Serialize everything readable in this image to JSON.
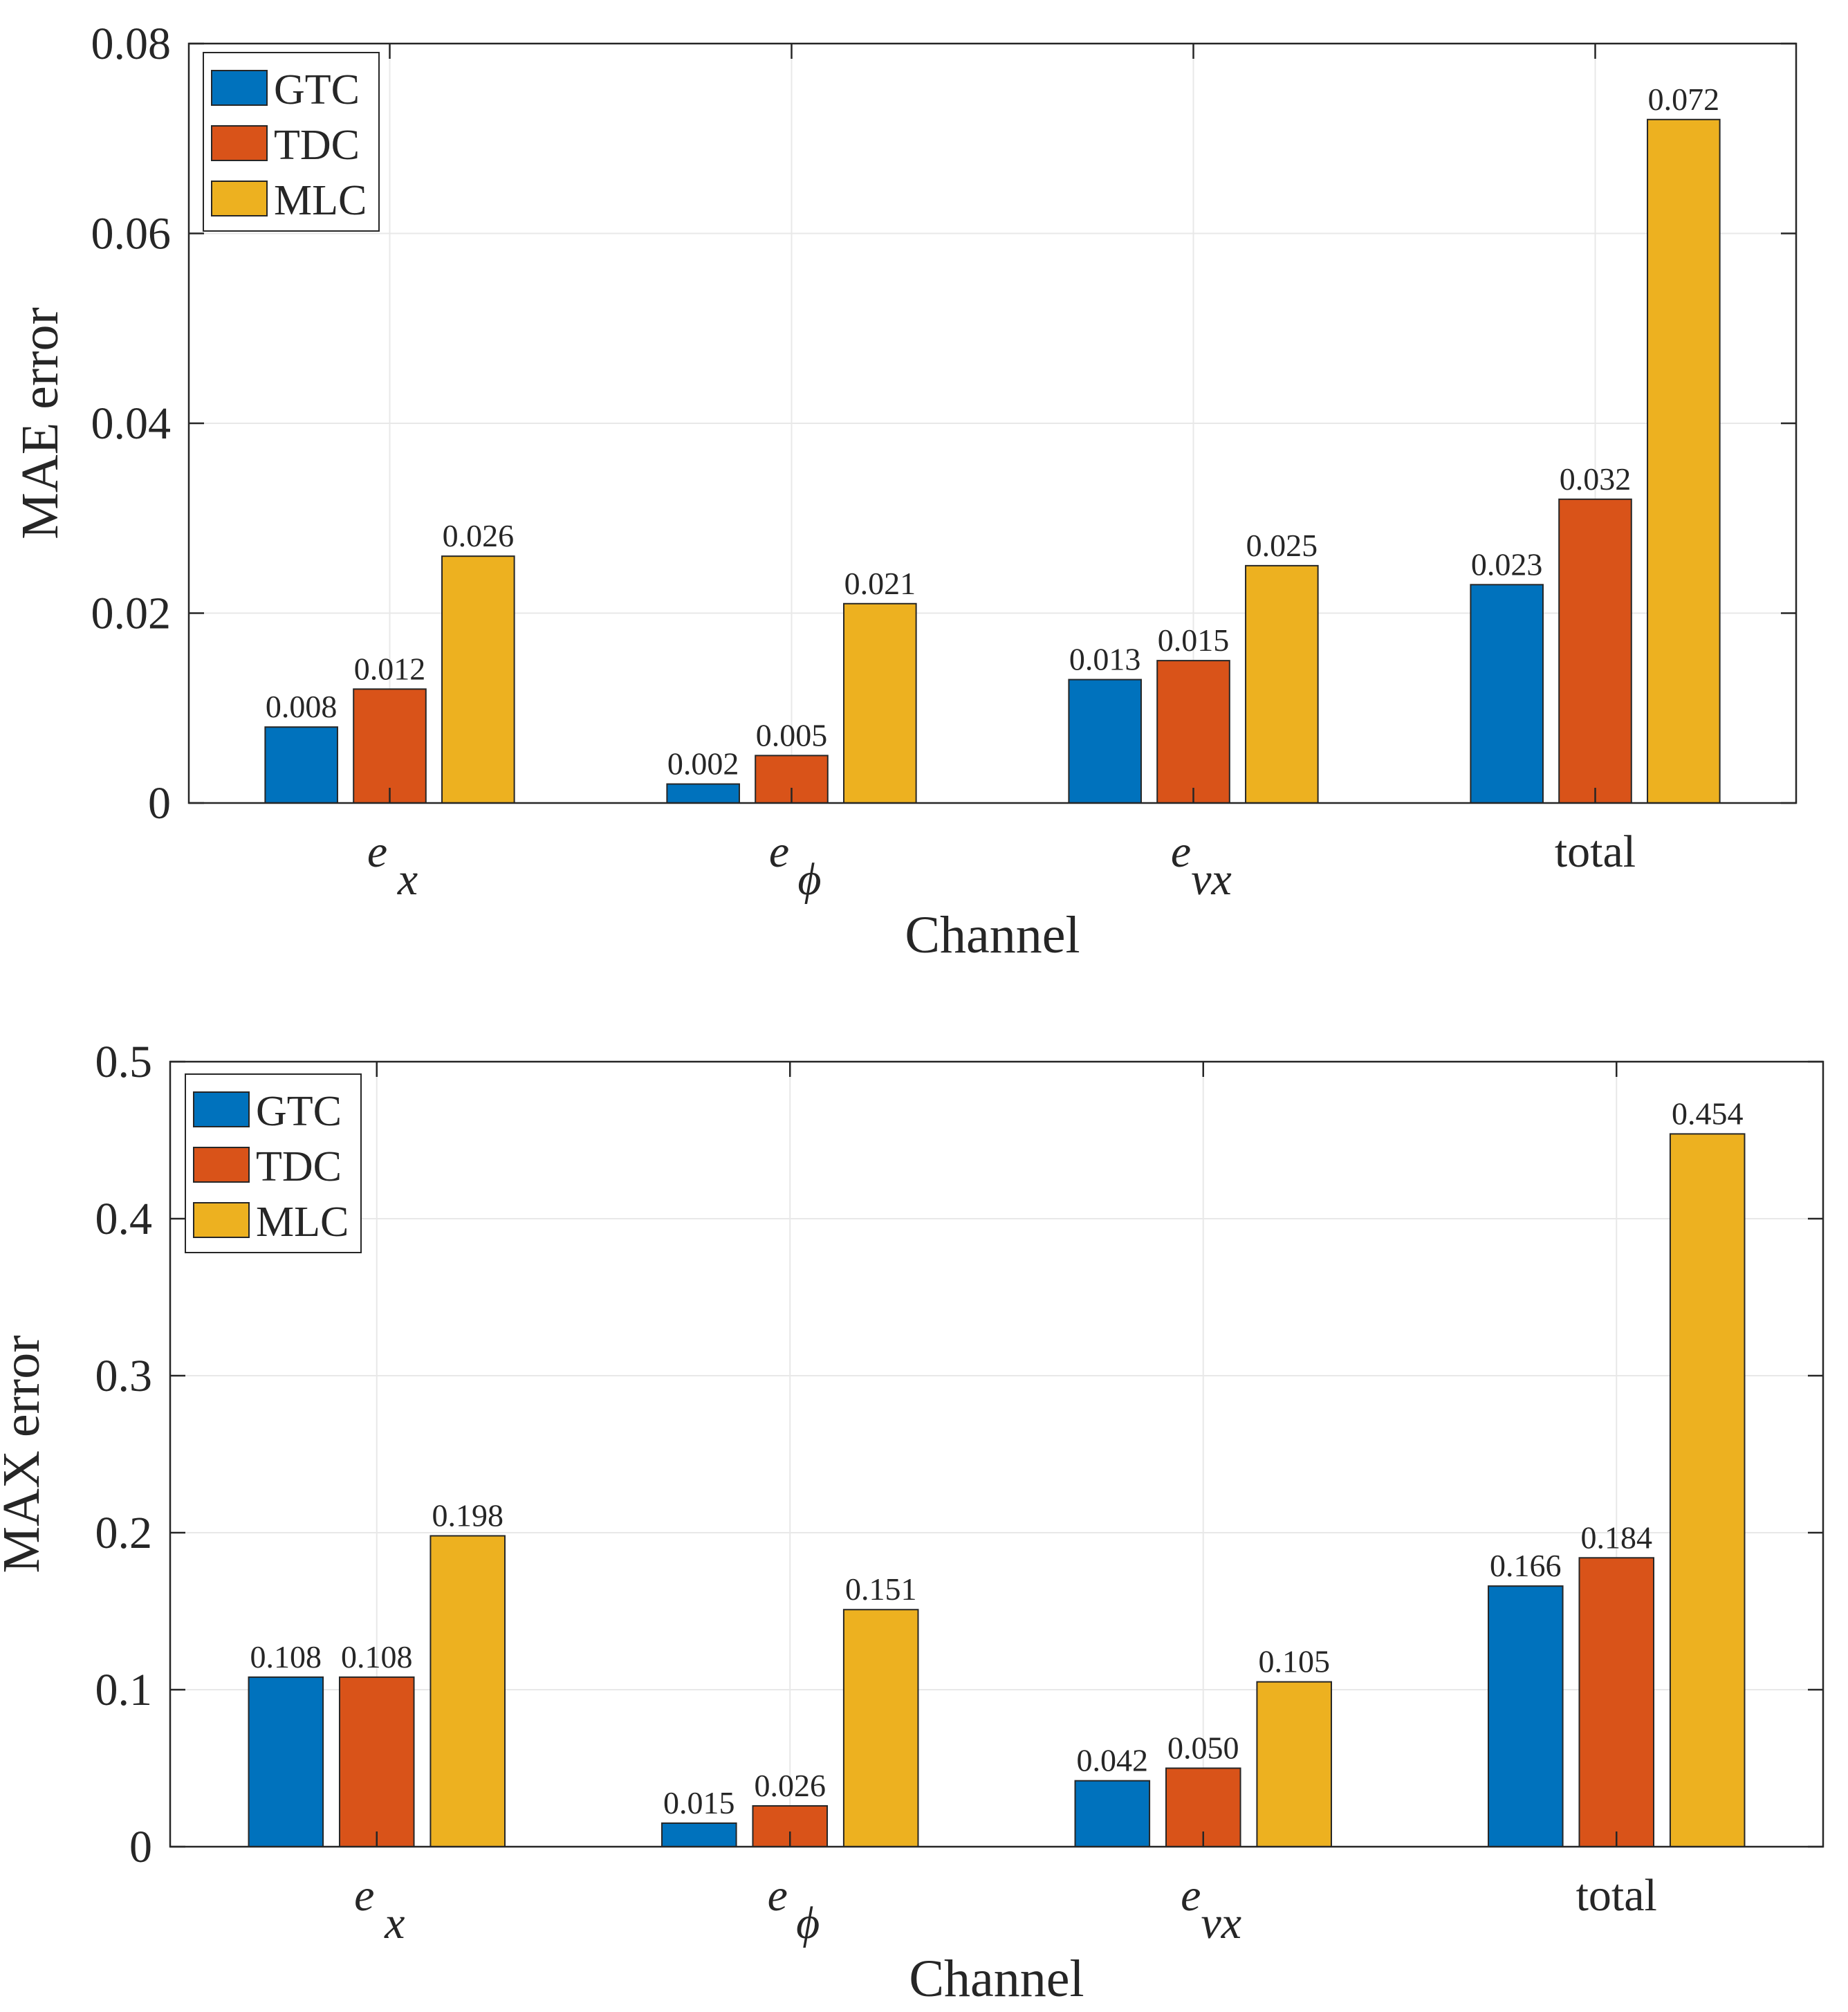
{
  "chart_data": [
    {
      "type": "bar",
      "categories": [
        {
          "base": "e",
          "sub": "x"
        },
        {
          "base": "e",
          "sub": "ϕ"
        },
        {
          "base": "e",
          "sub": "vx"
        },
        {
          "base": "total",
          "sub": ""
        }
      ],
      "series": [
        {
          "name": "GTC",
          "color": "#0072bd",
          "values": [
            0.008,
            0.002,
            0.013,
            0.023
          ],
          "labels": [
            "0.008",
            "0.002",
            "0.013",
            "0.023"
          ]
        },
        {
          "name": "TDC",
          "color": "#d95319",
          "values": [
            0.012,
            0.005,
            0.015,
            0.032
          ],
          "labels": [
            "0.012",
            "0.005",
            "0.015",
            "0.032"
          ]
        },
        {
          "name": "MLC",
          "color": "#edb120",
          "values": [
            0.026,
            0.021,
            0.025,
            0.072
          ],
          "labels": [
            "0.026",
            "0.021",
            "0.025",
            "0.072"
          ]
        }
      ],
      "xlabel": "Channel",
      "ylabel": "MAE error",
      "ylim": [
        0,
        0.08
      ],
      "yticks": [
        0,
        0.02,
        0.04,
        0.06,
        0.08
      ],
      "ytick_labels": [
        "0",
        "0.02",
        "0.04",
        "0.06",
        "0.08"
      ],
      "grid": true,
      "legend_position": "top-left"
    },
    {
      "type": "bar",
      "categories": [
        {
          "base": "e",
          "sub": "x"
        },
        {
          "base": "e",
          "sub": "ϕ"
        },
        {
          "base": "e",
          "sub": "vx"
        },
        {
          "base": "total",
          "sub": ""
        }
      ],
      "series": [
        {
          "name": "GTC",
          "color": "#0072bd",
          "values": [
            0.108,
            0.015,
            0.042,
            0.166
          ],
          "labels": [
            "0.108",
            "0.015",
            "0.042",
            "0.166"
          ]
        },
        {
          "name": "TDC",
          "color": "#d95319",
          "values": [
            0.108,
            0.026,
            0.05,
            0.184
          ],
          "labels": [
            "0.108",
            "0.026",
            "0.050",
            "0.184"
          ]
        },
        {
          "name": "MLC",
          "color": "#edb120",
          "values": [
            0.198,
            0.151,
            0.105,
            0.454
          ],
          "labels": [
            "0.198",
            "0.151",
            "0.105",
            "0.454"
          ]
        }
      ],
      "xlabel": "Channel",
      "ylabel": "MAX error",
      "ylim": [
        0,
        0.5
      ],
      "yticks": [
        0,
        0.1,
        0.2,
        0.3,
        0.4,
        0.5
      ],
      "ytick_labels": [
        "0",
        "0.1",
        "0.2",
        "0.3",
        "0.4",
        "0.5"
      ],
      "grid": true,
      "legend_position": "top-left"
    }
  ]
}
